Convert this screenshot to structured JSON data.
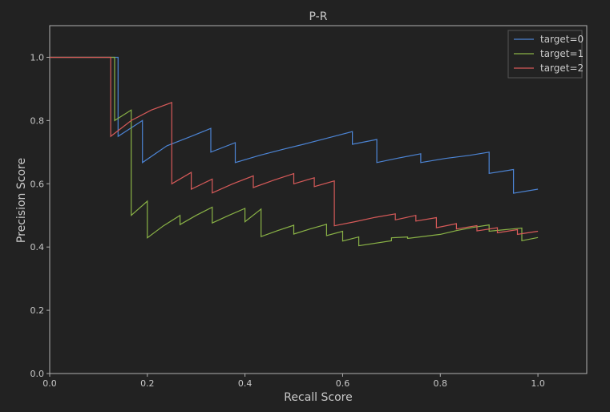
{
  "chart_data": {
    "type": "line",
    "title": "P-R",
    "xlabel": "Recall Score",
    "ylabel": "Precision Score",
    "xlim": [
      0.0,
      1.1
    ],
    "ylim": [
      0.0,
      1.1
    ],
    "xticks": [
      "0.0",
      "0.2",
      "0.4",
      "0.6",
      "0.8",
      "1.0"
    ],
    "yticks": [
      "0.0",
      "0.2",
      "0.4",
      "0.6",
      "0.8",
      "1.0"
    ],
    "grid": false,
    "legend_position": "top-right",
    "series": [
      {
        "name": "target=0",
        "color": "#4c84d4",
        "points": [
          [
            0.0,
            1.0
          ],
          [
            0.14,
            1.0
          ],
          [
            0.14,
            0.75
          ],
          [
            0.19,
            0.8
          ],
          [
            0.19,
            0.667
          ],
          [
            0.24,
            0.72
          ],
          [
            0.29,
            0.75
          ],
          [
            0.33,
            0.775
          ],
          [
            0.33,
            0.7
          ],
          [
            0.38,
            0.73
          ],
          [
            0.38,
            0.667
          ],
          [
            0.43,
            0.69
          ],
          [
            0.48,
            0.71
          ],
          [
            0.52,
            0.725
          ],
          [
            0.57,
            0.745
          ],
          [
            0.62,
            0.765
          ],
          [
            0.62,
            0.725
          ],
          [
            0.67,
            0.74
          ],
          [
            0.67,
            0.667
          ],
          [
            0.71,
            0.68
          ],
          [
            0.76,
            0.695
          ],
          [
            0.76,
            0.667
          ],
          [
            0.81,
            0.68
          ],
          [
            0.86,
            0.69
          ],
          [
            0.9,
            0.7
          ],
          [
            0.9,
            0.633
          ],
          [
            0.95,
            0.645
          ],
          [
            0.95,
            0.57
          ],
          [
            1.0,
            0.583
          ]
        ]
      },
      {
        "name": "target=1",
        "color": "#8ab346",
        "points": [
          [
            0.0,
            1.0
          ],
          [
            0.133,
            1.0
          ],
          [
            0.133,
            0.8
          ],
          [
            0.167,
            0.833
          ],
          [
            0.167,
            0.5
          ],
          [
            0.2,
            0.545
          ],
          [
            0.2,
            0.429
          ],
          [
            0.233,
            0.467
          ],
          [
            0.267,
            0.5
          ],
          [
            0.267,
            0.471
          ],
          [
            0.3,
            0.5
          ],
          [
            0.333,
            0.526
          ],
          [
            0.333,
            0.476
          ],
          [
            0.367,
            0.5
          ],
          [
            0.4,
            0.522
          ],
          [
            0.4,
            0.48
          ],
          [
            0.433,
            0.52
          ],
          [
            0.433,
            0.433
          ],
          [
            0.467,
            0.452
          ],
          [
            0.5,
            0.469
          ],
          [
            0.5,
            0.441
          ],
          [
            0.533,
            0.457
          ],
          [
            0.567,
            0.472
          ],
          [
            0.567,
            0.436
          ],
          [
            0.6,
            0.45
          ],
          [
            0.6,
            0.419
          ],
          [
            0.633,
            0.432
          ],
          [
            0.633,
            0.404
          ],
          [
            0.7,
            0.42
          ],
          [
            0.7,
            0.429
          ],
          [
            0.733,
            0.432
          ],
          [
            0.733,
            0.427
          ],
          [
            0.8,
            0.44
          ],
          [
            0.833,
            0.452
          ],
          [
            0.867,
            0.462
          ],
          [
            0.9,
            0.47
          ],
          [
            0.9,
            0.45
          ],
          [
            0.933,
            0.455
          ],
          [
            0.967,
            0.46
          ],
          [
            0.967,
            0.42
          ],
          [
            1.0,
            0.43
          ]
        ]
      },
      {
        "name": "target=2",
        "color": "#d75a59",
        "points": [
          [
            0.0,
            1.0
          ],
          [
            0.125,
            1.0
          ],
          [
            0.125,
            0.75
          ],
          [
            0.167,
            0.8
          ],
          [
            0.208,
            0.833
          ],
          [
            0.25,
            0.857
          ],
          [
            0.25,
            0.6
          ],
          [
            0.29,
            0.636
          ],
          [
            0.29,
            0.583
          ],
          [
            0.333,
            0.615
          ],
          [
            0.333,
            0.571
          ],
          [
            0.375,
            0.6
          ],
          [
            0.417,
            0.625
          ],
          [
            0.417,
            0.588
          ],
          [
            0.458,
            0.611
          ],
          [
            0.5,
            0.632
          ],
          [
            0.5,
            0.6
          ],
          [
            0.542,
            0.619
          ],
          [
            0.542,
            0.591
          ],
          [
            0.583,
            0.609
          ],
          [
            0.583,
            0.467
          ],
          [
            0.625,
            0.48
          ],
          [
            0.667,
            0.494
          ],
          [
            0.708,
            0.505
          ],
          [
            0.708,
            0.486
          ],
          [
            0.75,
            0.5
          ],
          [
            0.75,
            0.482
          ],
          [
            0.792,
            0.493
          ],
          [
            0.792,
            0.461
          ],
          [
            0.833,
            0.474
          ],
          [
            0.833,
            0.457
          ],
          [
            0.875,
            0.468
          ],
          [
            0.875,
            0.451
          ],
          [
            0.917,
            0.461
          ],
          [
            0.917,
            0.445
          ],
          [
            0.958,
            0.455
          ],
          [
            0.958,
            0.44
          ],
          [
            1.0,
            0.45
          ]
        ]
      }
    ]
  }
}
